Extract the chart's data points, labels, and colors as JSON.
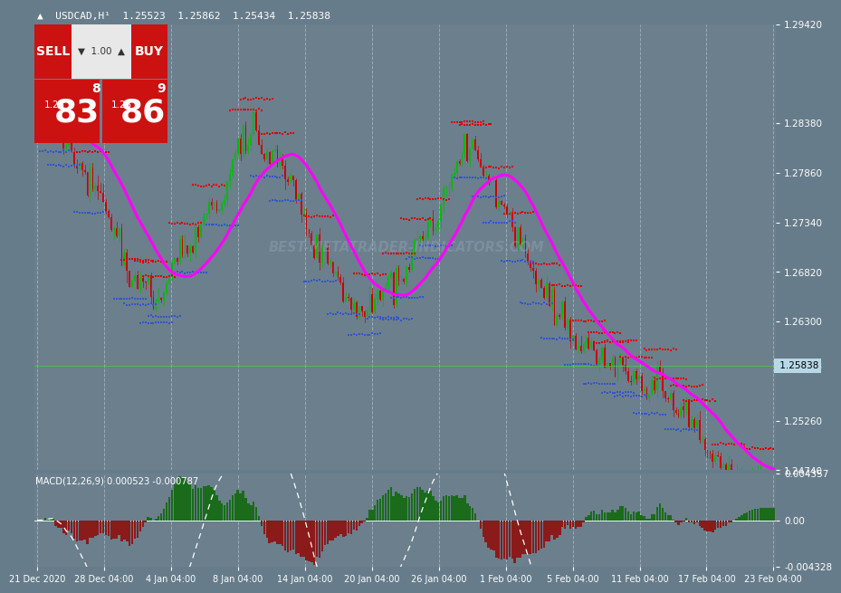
{
  "title": "USDCAD,H¹  1.25523 1.25862 1.25434 1.25838",
  "bg_color": "#677c8a",
  "chart_bg": "#6b7f8d",
  "panel_header_bg": "#4d5f6b",
  "price_min": 1.2474,
  "price_max": 1.2942,
  "macd_min": -0.004328,
  "macd_max": 0.004357,
  "yticks_price": [
    1.2474,
    1.2526,
    1.25838,
    1.263,
    1.2682,
    1.2734,
    1.2786,
    1.2838,
    1.2942
  ],
  "yticks_macd_labels": [
    "-0.004328",
    "0.00",
    "0.004357"
  ],
  "yticks_macd_vals": [
    -0.004328,
    0.0,
    0.004357
  ],
  "x_labels": [
    "21 Dec 2020",
    "28 Dec 04:00",
    "4 Jan 04:00",
    "8 Jan 04:00",
    "14 Jan 04:00",
    "20 Jan 04:00",
    "26 Jan 04:00",
    "1 Feb 04:00",
    "5 Feb 04:00",
    "11 Feb 04:00",
    "17 Feb 04:00",
    "23 Feb 04:00"
  ],
  "watermark": "BEST-METATRADER-INDICATORS.COM",
  "macd_label": "MACD(12,26,9) 0.000523 -0.000787",
  "current_price": "1.25838",
  "vline_color": "#b8c8d4",
  "up_candle_color": "#00bb00",
  "dn_candle_color": "#cc0000",
  "ma_color": "#ff00ff",
  "dot_red": "#dd0000",
  "dot_blue": "#3355cc",
  "macd_bar_color": "#1a6b1a",
  "macd_bar_edge": "#2a8b2a",
  "n_bars": 280,
  "seed": 7
}
